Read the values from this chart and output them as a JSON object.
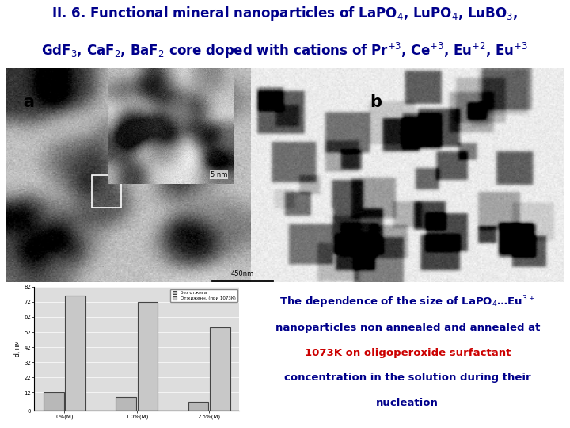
{
  "bg_color": "#ffffff",
  "title_color": "#00008B",
  "title_fs": 12,
  "bar_categories": [
    "0%(M)",
    "1.0%(M)",
    "2.5%(M)"
  ],
  "bar_series1": [
    12,
    9,
    6
  ],
  "bar_series2": [
    76,
    72,
    55
  ],
  "bar_color1": "#b8b8b8",
  "bar_color2": "#c8c8c8",
  "bar_edge_color": "#444444",
  "ylabel_bar": "d, нм",
  "ylim_bar": [
    0,
    82
  ],
  "yticks_bar": [
    0,
    12,
    22,
    32,
    42,
    52,
    62,
    72,
    82
  ],
  "legend1": "без отжига",
  "legend2": "Отжиженн. (при 1073К)",
  "text_main_color": "#00008B",
  "text_highlight_color": "#cc0000",
  "img_a_seed": 42,
  "img_b_seed": 99,
  "label_a_color": "#000000",
  "label_b_color": "#000000"
}
